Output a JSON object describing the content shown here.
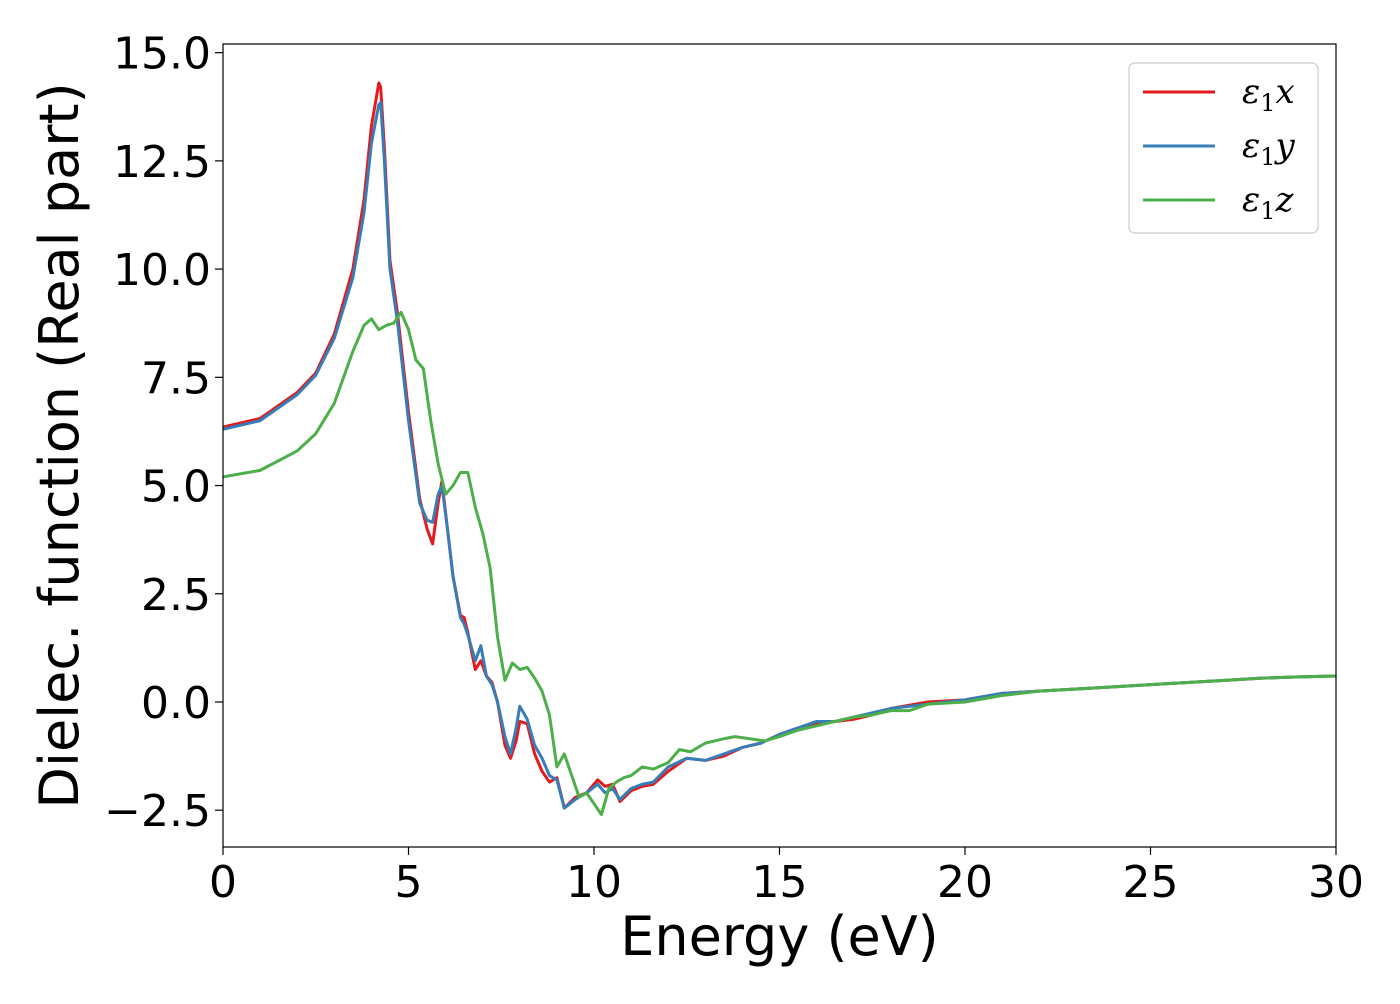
{
  "chart_data": {
    "type": "line",
    "xlabel": "Energy (eV)",
    "ylabel": "Dielec. function (Real part)",
    "xlim": [
      0,
      30
    ],
    "ylim": [
      -3.35,
      15.2
    ],
    "xticks": [
      0,
      5,
      10,
      15,
      20,
      25,
      30
    ],
    "xtick_labels": [
      "0",
      "5",
      "10",
      "15",
      "20",
      "25",
      "30"
    ],
    "yticks": [
      -2.5,
      0.0,
      2.5,
      5.0,
      7.5,
      10.0,
      12.5,
      15.0
    ],
    "ytick_labels": [
      "−2.5",
      "0.0",
      "2.5",
      "5.0",
      "7.5",
      "10.0",
      "12.5",
      "15.0"
    ],
    "grid": false,
    "legend_position": "top-right",
    "series": [
      {
        "name": "ε1x",
        "legend_symbol": "ε",
        "legend_sub": "1",
        "legend_var": "x",
        "color": "#e41a1c",
        "x": [
          0,
          1,
          2,
          2.5,
          3,
          3.5,
          3.8,
          4.0,
          4.2,
          4.25,
          4.35,
          4.5,
          4.7,
          5.0,
          5.3,
          5.5,
          5.65,
          5.8,
          5.9,
          6.05,
          6.2,
          6.4,
          6.5,
          6.6,
          6.8,
          6.95,
          7.1,
          7.25,
          7.4,
          7.6,
          7.75,
          7.9,
          8.0,
          8.2,
          8.4,
          8.6,
          8.8,
          9.0,
          9.2,
          9.5,
          9.8,
          10.1,
          10.3,
          10.5,
          10.7,
          11.0,
          11.3,
          11.6,
          12.0,
          12.5,
          13.0,
          13.5,
          14.0,
          14.5,
          15.0,
          15.5,
          16.0,
          16.5,
          17.0,
          17.5,
          18.0,
          19.0,
          20.0,
          21.0,
          22.0,
          23.0,
          24.0,
          25.0,
          26.0,
          27.0,
          28.0,
          29.0,
          30.0
        ],
        "values": [
          6.35,
          6.55,
          7.15,
          7.6,
          8.5,
          10.0,
          11.6,
          13.3,
          14.3,
          14.2,
          12.8,
          10.2,
          9.0,
          6.7,
          4.7,
          4.0,
          3.65,
          4.6,
          5.1,
          4.0,
          2.9,
          2.0,
          1.95,
          1.6,
          0.75,
          0.95,
          0.6,
          0.45,
          0.0,
          -1.0,
          -1.3,
          -0.9,
          -0.45,
          -0.5,
          -1.2,
          -1.6,
          -1.85,
          -1.75,
          -2.45,
          -2.2,
          -2.1,
          -1.8,
          -1.95,
          -1.9,
          -2.3,
          -2.05,
          -1.95,
          -1.9,
          -1.6,
          -1.3,
          -1.35,
          -1.25,
          -1.05,
          -0.95,
          -0.75,
          -0.6,
          -0.5,
          -0.45,
          -0.4,
          -0.3,
          -0.15,
          0.0,
          0.05,
          0.2,
          0.25,
          0.3,
          0.35,
          0.4,
          0.45,
          0.5,
          0.55,
          0.58,
          0.6
        ]
      },
      {
        "name": "ε1y",
        "legend_symbol": "ε",
        "legend_sub": "1",
        "legend_var": "y",
        "color": "#377eb8",
        "x": [
          0,
          1,
          2,
          2.5,
          3,
          3.5,
          3.8,
          4.0,
          4.2,
          4.25,
          4.35,
          4.5,
          4.7,
          5.0,
          5.3,
          5.5,
          5.65,
          5.8,
          5.9,
          6.05,
          6.2,
          6.4,
          6.5,
          6.6,
          6.8,
          6.95,
          7.1,
          7.25,
          7.4,
          7.6,
          7.75,
          7.9,
          8.0,
          8.2,
          8.4,
          8.6,
          8.8,
          9.0,
          9.2,
          9.5,
          9.8,
          10.1,
          10.3,
          10.5,
          10.7,
          11.0,
          11.3,
          11.6,
          12.0,
          12.5,
          13.0,
          13.5,
          14.0,
          14.5,
          15.0,
          15.5,
          16.0,
          16.5,
          17.0,
          17.5,
          18.0,
          19.0,
          20.0,
          21.0,
          22.0,
          23.0,
          24.0,
          25.0,
          26.0,
          27.0,
          28.0,
          29.0,
          30.0
        ],
        "values": [
          6.3,
          6.5,
          7.1,
          7.55,
          8.4,
          9.8,
          11.3,
          12.9,
          13.8,
          13.85,
          12.5,
          10.0,
          8.8,
          6.5,
          4.6,
          4.2,
          4.15,
          4.8,
          5.0,
          4.0,
          2.9,
          1.95,
          1.8,
          1.55,
          0.95,
          1.3,
          0.6,
          0.4,
          0.0,
          -0.8,
          -1.2,
          -0.6,
          -0.1,
          -0.4,
          -1.0,
          -1.3,
          -1.7,
          -1.8,
          -2.45,
          -2.25,
          -2.1,
          -1.9,
          -2.1,
          -2.0,
          -2.25,
          -2.0,
          -1.9,
          -1.85,
          -1.5,
          -1.3,
          -1.35,
          -1.2,
          -1.05,
          -0.95,
          -0.75,
          -0.6,
          -0.45,
          -0.45,
          -0.35,
          -0.25,
          -0.15,
          -0.05,
          0.05,
          0.2,
          0.25,
          0.3,
          0.35,
          0.4,
          0.45,
          0.5,
          0.55,
          0.58,
          0.6
        ]
      },
      {
        "name": "ε1z",
        "legend_symbol": "ε",
        "legend_sub": "1",
        "legend_var": "z",
        "color": "#4daf4a",
        "x": [
          0,
          1,
          2,
          2.5,
          3,
          3.5,
          3.8,
          4.0,
          4.2,
          4.4,
          4.6,
          4.8,
          5.0,
          5.2,
          5.4,
          5.6,
          5.8,
          6.0,
          6.2,
          6.4,
          6.6,
          6.8,
          7.0,
          7.2,
          7.4,
          7.6,
          7.8,
          8.0,
          8.2,
          8.4,
          8.6,
          8.8,
          9.0,
          9.2,
          9.4,
          9.6,
          9.8,
          10.0,
          10.2,
          10.4,
          10.6,
          10.8,
          11.0,
          11.3,
          11.6,
          12.0,
          12.3,
          12.6,
          13.0,
          13.5,
          13.8,
          14.2,
          14.6,
          15.0,
          15.5,
          16.0,
          16.5,
          17.0,
          17.5,
          18.0,
          18.5,
          19.0,
          20.0,
          21.0,
          22.0,
          23.0,
          24.0,
          25.0,
          26.0,
          27.0,
          28.0,
          29.0,
          30.0
        ],
        "values": [
          5.2,
          5.35,
          5.8,
          6.2,
          6.9,
          8.1,
          8.7,
          8.85,
          8.6,
          8.7,
          8.75,
          9.0,
          8.6,
          7.9,
          7.7,
          6.5,
          5.5,
          4.8,
          5.0,
          5.3,
          5.3,
          4.5,
          3.9,
          3.1,
          1.5,
          0.5,
          0.9,
          0.75,
          0.8,
          0.55,
          0.25,
          -0.3,
          -1.5,
          -1.2,
          -1.7,
          -2.2,
          -2.1,
          -2.35,
          -2.6,
          -2.0,
          -1.85,
          -1.75,
          -1.7,
          -1.5,
          -1.55,
          -1.4,
          -1.1,
          -1.15,
          -0.95,
          -0.85,
          -0.8,
          -0.85,
          -0.9,
          -0.8,
          -0.65,
          -0.55,
          -0.45,
          -0.35,
          -0.3,
          -0.2,
          -0.2,
          -0.05,
          0.0,
          0.15,
          0.25,
          0.3,
          0.35,
          0.4,
          0.45,
          0.5,
          0.55,
          0.58,
          0.6
        ]
      }
    ]
  }
}
